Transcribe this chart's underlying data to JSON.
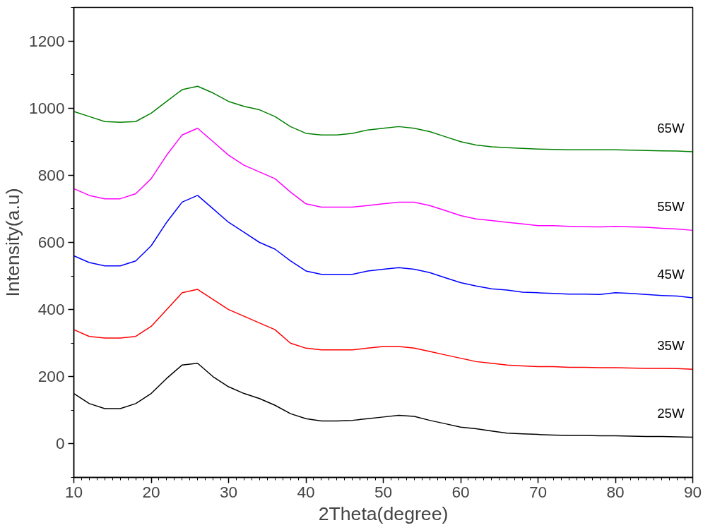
{
  "chart_data": {
    "type": "line",
    "xlabel": "2Theta(degree)",
    "ylabel": "Intensity(a.u)",
    "x": [
      10,
      12,
      14,
      16,
      18,
      20,
      22,
      24,
      26,
      28,
      30,
      32,
      34,
      36,
      38,
      40,
      42,
      44,
      46,
      48,
      50,
      52,
      54,
      56,
      58,
      60,
      62,
      64,
      66,
      68,
      70,
      72,
      74,
      76,
      78,
      80,
      82,
      84,
      86,
      88,
      90
    ],
    "series": [
      {
        "name": "25W",
        "color": "#000000",
        "values": [
          150,
          120,
          105,
          105,
          120,
          150,
          195,
          235,
          240,
          200,
          170,
          150,
          135,
          115,
          90,
          75,
          68,
          68,
          70,
          75,
          80,
          85,
          82,
          70,
          60,
          50,
          45,
          38,
          32,
          30,
          28,
          26,
          25,
          25,
          24,
          24,
          23,
          22,
          22,
          21,
          20
        ]
      },
      {
        "name": "35W",
        "color": "#ff0000",
        "values": [
          340,
          320,
          315,
          315,
          320,
          350,
          400,
          450,
          460,
          430,
          400,
          380,
          360,
          340,
          300,
          285,
          280,
          280,
          280,
          285,
          290,
          290,
          285,
          275,
          265,
          255,
          245,
          240,
          235,
          232,
          230,
          230,
          228,
          228,
          227,
          227,
          226,
          225,
          225,
          224,
          222
        ]
      },
      {
        "name": "45W",
        "color": "#0000ff",
        "values": [
          560,
          540,
          530,
          530,
          545,
          590,
          660,
          720,
          740,
          700,
          660,
          630,
          600,
          580,
          545,
          515,
          505,
          505,
          505,
          515,
          520,
          525,
          520,
          510,
          495,
          480,
          470,
          462,
          458,
          452,
          450,
          448,
          446,
          446,
          445,
          450,
          448,
          445,
          442,
          440,
          435
        ]
      },
      {
        "name": "55W",
        "color": "#ff00ff",
        "values": [
          760,
          740,
          730,
          730,
          745,
          790,
          860,
          920,
          940,
          900,
          860,
          830,
          810,
          790,
          750,
          715,
          705,
          705,
          705,
          710,
          715,
          720,
          720,
          710,
          695,
          680,
          670,
          665,
          660,
          655,
          650,
          650,
          648,
          647,
          646,
          648,
          646,
          645,
          642,
          640,
          636
        ]
      },
      {
        "name": "65W",
        "color": "#008000",
        "values": [
          990,
          975,
          960,
          958,
          960,
          985,
          1020,
          1055,
          1065,
          1045,
          1020,
          1005,
          995,
          975,
          945,
          925,
          920,
          920,
          925,
          935,
          940,
          945,
          940,
          930,
          915,
          900,
          890,
          885,
          882,
          880,
          878,
          877,
          876,
          876,
          876,
          876,
          875,
          874,
          873,
          872,
          870
        ]
      }
    ],
    "xlim": [
      10,
      90
    ],
    "ylim": [
      -100,
      1300
    ],
    "xticks": [
      10,
      20,
      30,
      40,
      50,
      60,
      70,
      80,
      90
    ],
    "yticks": [
      0,
      200,
      400,
      600,
      800,
      1000,
      1200
    ]
  }
}
